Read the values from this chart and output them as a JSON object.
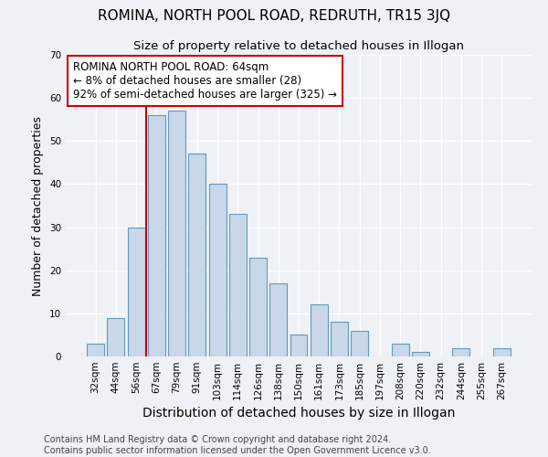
{
  "title": "ROMINA, NORTH POOL ROAD, REDRUTH, TR15 3JQ",
  "subtitle": "Size of property relative to detached houses in Illogan",
  "xlabel": "Distribution of detached houses by size in Illogan",
  "ylabel": "Number of detached properties",
  "bar_labels": [
    "32sqm",
    "44sqm",
    "56sqm",
    "67sqm",
    "79sqm",
    "91sqm",
    "103sqm",
    "114sqm",
    "126sqm",
    "138sqm",
    "150sqm",
    "161sqm",
    "173sqm",
    "185sqm",
    "197sqm",
    "208sqm",
    "220sqm",
    "232sqm",
    "244sqm",
    "255sqm",
    "267sqm"
  ],
  "bar_values": [
    3,
    9,
    30,
    56,
    57,
    47,
    40,
    33,
    23,
    17,
    5,
    12,
    8,
    6,
    0,
    3,
    1,
    0,
    2,
    0,
    2
  ],
  "bar_color": "#c8d8e8",
  "bar_edge_color": "#6699bb",
  "ylim": [
    0,
    70
  ],
  "yticks": [
    0,
    10,
    20,
    30,
    40,
    50,
    60,
    70
  ],
  "marker_label_line1": "ROMINA NORTH POOL ROAD: 64sqm",
  "marker_label_line2": "← 8% of detached houses are smaller (28)",
  "marker_label_line3": "92% of semi-detached houses are larger (325) →",
  "annotation_box_color": "#ffffff",
  "annotation_box_edge": "#cc0000",
  "marker_line_color": "#cc0000",
  "footer_line1": "Contains HM Land Registry data © Crown copyright and database right 2024.",
  "footer_line2": "Contains public sector information licensed under the Open Government Licence v3.0.",
  "background_color": "#eef2f6",
  "plot_background": "#eef2f6",
  "title_fontsize": 11,
  "subtitle_fontsize": 9.5,
  "annotation_fontsize": 8.5,
  "ylabel_fontsize": 9,
  "xlabel_fontsize": 10,
  "tick_fontsize": 7.5,
  "footer_fontsize": 7
}
